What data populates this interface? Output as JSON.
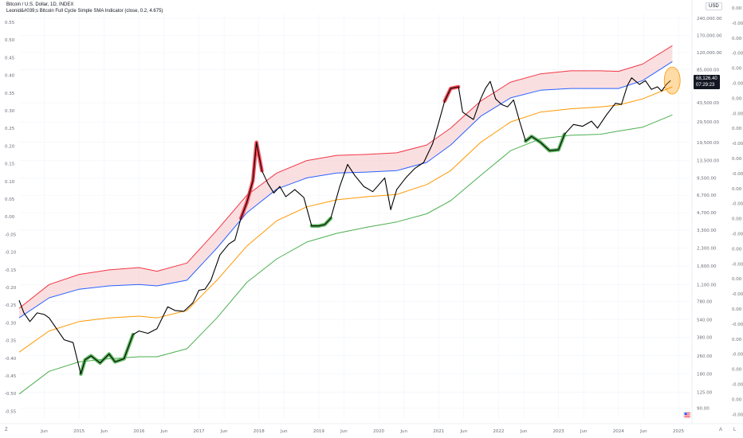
{
  "header": {
    "symbol_line": "Bitcoin / U.S. Dollar, 1D, INDEX",
    "indicator_line": "Leonid&#039;s Bitcoin Full Cycle Simple SMA Indicator (close, 0.2, 4.675)"
  },
  "currency_button": "USD",
  "price_label": {
    "value": "68,126.40",
    "time": "07:29:23"
  },
  "bottom_right": {
    "auto": "A",
    "log": "L"
  },
  "bottom_left": "Z",
  "colors": {
    "band_top": "#f23645",
    "band_mid": "#2962ff",
    "band_fair": "#ff9800",
    "band_low": "#4caf50",
    "price": "#000000",
    "highlight_overbought": "#f23645",
    "highlight_oversold": "#4caf50",
    "band_fill": "#f5c5c8",
    "ellipse": "#ff9800"
  },
  "chart_data": {
    "type": "line",
    "y_scale": "log",
    "title": "",
    "left_axis_ticks": [
      "0.55",
      "0.50",
      "0.45",
      "0.40",
      "0.35",
      "0.30",
      "0.25",
      "0.20",
      "0.15",
      "0.10",
      "0.05",
      "0.00",
      "-0.05",
      "-0.10",
      "-0.15",
      "-0.20",
      "-0.25",
      "-0.30",
      "-0.35",
      "-0.40",
      "-0.45",
      "-0.50",
      "-0.55"
    ],
    "price_axis_ticks": [
      {
        "label": "240,000.00",
        "value": 240000
      },
      {
        "label": "170,000.00",
        "value": 170000
      },
      {
        "label": "120,000.00",
        "value": 120000
      },
      {
        "label": "85,000.00",
        "value": 85000
      },
      {
        "label": "43,500.00",
        "value": 43500
      },
      {
        "label": "29,500.00",
        "value": 29500
      },
      {
        "label": "19,500.00",
        "value": 19500
      },
      {
        "label": "13,500.00",
        "value": 13500
      },
      {
        "label": "9,500.00",
        "value": 9500
      },
      {
        "label": "6,700.00",
        "value": 6700
      },
      {
        "label": "4,700.00",
        "value": 4700
      },
      {
        "label": "3,300.00",
        "value": 3300
      },
      {
        "label": "2,300.00",
        "value": 2300
      },
      {
        "label": "1,600.00",
        "value": 1600
      },
      {
        "label": "1,100.00",
        "value": 1100
      },
      {
        "label": "780.00",
        "value": 780
      },
      {
        "label": "540.00",
        "value": 540
      },
      {
        "label": "380.00",
        "value": 380
      },
      {
        "label": "260.00",
        "value": 260
      },
      {
        "label": "180.00",
        "value": 180
      },
      {
        "label": "125.00",
        "value": 125
      },
      {
        "label": "90.00",
        "value": 90
      }
    ],
    "oscillator_axis_ticks": [
      "0.00",
      "-0.00",
      "0.00",
      "-0.00",
      "0.00",
      "-0.00",
      "0.00",
      "-0.00",
      "0.00",
      "-0.00",
      "0.00",
      "-0.00",
      "0.00",
      "-0.00",
      "0.00",
      "-0.00",
      "0.00",
      "-0.00",
      "0.00",
      "-0.00",
      "0.00",
      "-0.00",
      "0.00",
      "-0.00",
      "0.00",
      "-0.00",
      "0.00",
      "-0.00"
    ],
    "x_ticks": [
      {
        "label": "Jun",
        "t": 2014.42
      },
      {
        "label": "2015",
        "t": 2015.0
      },
      {
        "label": "Jun",
        "t": 2015.42
      },
      {
        "label": "2016",
        "t": 2016.0
      },
      {
        "label": "Jun",
        "t": 2016.42
      },
      {
        "label": "2017",
        "t": 2017.0
      },
      {
        "label": "Jun",
        "t": 2017.42
      },
      {
        "label": "2018",
        "t": 2018.0
      },
      {
        "label": "Jun",
        "t": 2018.42
      },
      {
        "label": "2019",
        "t": 2019.0
      },
      {
        "label": "Jun",
        "t": 2019.42
      },
      {
        "label": "2020",
        "t": 2020.0
      },
      {
        "label": "Jun",
        "t": 2020.42
      },
      {
        "label": "2021",
        "t": 2021.0
      },
      {
        "label": "Jun",
        "t": 2021.42
      },
      {
        "label": "2022",
        "t": 2022.0
      },
      {
        "label": "Jun",
        "t": 2022.42
      },
      {
        "label": "2023",
        "t": 2023.0
      },
      {
        "label": "Jun",
        "t": 2023.42
      },
      {
        "label": "2024",
        "t": 2024.0
      },
      {
        "label": "Jun",
        "t": 2024.42
      },
      {
        "label": "2025",
        "t": 2025.0
      }
    ],
    "x_range": [
      2014.0,
      2025.2
    ],
    "y_range": [
      80,
      260000
    ],
    "series": [
      {
        "key": "top",
        "points": [
          [
            2014.0,
            680
          ],
          [
            2014.5,
            1100
          ],
          [
            2015.0,
            1350
          ],
          [
            2015.5,
            1480
          ],
          [
            2016.0,
            1550
          ],
          [
            2016.3,
            1440
          ],
          [
            2016.8,
            1700
          ],
          [
            2017.3,
            3300
          ],
          [
            2017.8,
            6700
          ],
          [
            2018.3,
            10500
          ],
          [
            2018.8,
            13500
          ],
          [
            2019.3,
            15000
          ],
          [
            2019.8,
            15300
          ],
          [
            2020.3,
            15800
          ],
          [
            2020.8,
            18500
          ],
          [
            2021.2,
            26000
          ],
          [
            2021.7,
            45000
          ],
          [
            2022.2,
            66000
          ],
          [
            2022.7,
            78000
          ],
          [
            2023.2,
            83000
          ],
          [
            2023.7,
            83000
          ],
          [
            2024.0,
            82000
          ],
          [
            2024.4,
            95000
          ],
          [
            2024.9,
            138000
          ]
        ]
      },
      {
        "key": "mid",
        "points": [
          [
            2014.0,
            560
          ],
          [
            2014.5,
            840
          ],
          [
            2015.0,
            1000
          ],
          [
            2015.5,
            1070
          ],
          [
            2016.0,
            1100
          ],
          [
            2016.3,
            1070
          ],
          [
            2016.8,
            1200
          ],
          [
            2017.3,
            2300
          ],
          [
            2017.8,
            4700
          ],
          [
            2018.3,
            7600
          ],
          [
            2018.8,
            9500
          ],
          [
            2019.3,
            10500
          ],
          [
            2019.8,
            10700
          ],
          [
            2020.3,
            11000
          ],
          [
            2020.8,
            13000
          ],
          [
            2021.2,
            18500
          ],
          [
            2021.7,
            33000
          ],
          [
            2022.2,
            48000
          ],
          [
            2022.7,
            56000
          ],
          [
            2023.2,
            58000
          ],
          [
            2023.7,
            58000
          ],
          [
            2024.0,
            58000
          ],
          [
            2024.4,
            68000
          ],
          [
            2024.9,
            100000
          ]
        ]
      },
      {
        "key": "fair",
        "points": [
          [
            2014.0,
            280
          ],
          [
            2014.5,
            430
          ],
          [
            2015.0,
            520
          ],
          [
            2015.5,
            560
          ],
          [
            2016.0,
            580
          ],
          [
            2016.3,
            560
          ],
          [
            2016.8,
            650
          ],
          [
            2017.3,
            1200
          ],
          [
            2017.8,
            2400
          ],
          [
            2018.3,
            4000
          ],
          [
            2018.8,
            5300
          ],
          [
            2019.3,
            6100
          ],
          [
            2019.8,
            6500
          ],
          [
            2020.3,
            6800
          ],
          [
            2020.8,
            8300
          ],
          [
            2021.2,
            11000
          ],
          [
            2021.7,
            19500
          ],
          [
            2022.2,
            29500
          ],
          [
            2022.7,
            36000
          ],
          [
            2023.2,
            38500
          ],
          [
            2023.7,
            40000
          ],
          [
            2024.0,
            41500
          ],
          [
            2024.4,
            47000
          ],
          [
            2024.9,
            60000
          ]
        ]
      },
      {
        "key": "low",
        "points": [
          [
            2014.0,
            120
          ],
          [
            2014.5,
            190
          ],
          [
            2015.0,
            230
          ],
          [
            2015.5,
            245
          ],
          [
            2016.0,
            255
          ],
          [
            2016.3,
            255
          ],
          [
            2016.8,
            300
          ],
          [
            2017.3,
            560
          ],
          [
            2017.8,
            1150
          ],
          [
            2018.3,
            1850
          ],
          [
            2018.8,
            2600
          ],
          [
            2019.3,
            3100
          ],
          [
            2019.8,
            3500
          ],
          [
            2020.3,
            3900
          ],
          [
            2020.8,
            4600
          ],
          [
            2021.2,
            6000
          ],
          [
            2021.7,
            10000
          ],
          [
            2022.2,
            16500
          ],
          [
            2022.7,
            21000
          ],
          [
            2023.2,
            22500
          ],
          [
            2023.7,
            23000
          ],
          [
            2024.0,
            24500
          ],
          [
            2024.4,
            26500
          ],
          [
            2024.9,
            34000
          ]
        ]
      },
      {
        "key": "price",
        "points": [
          [
            2014.0,
            800
          ],
          [
            2014.08,
            620
          ],
          [
            2014.18,
            520
          ],
          [
            2014.3,
            620
          ],
          [
            2014.42,
            600
          ],
          [
            2014.5,
            560
          ],
          [
            2014.6,
            470
          ],
          [
            2014.75,
            360
          ],
          [
            2014.9,
            340
          ],
          [
            2015.03,
            180
          ],
          [
            2015.1,
            240
          ],
          [
            2015.2,
            260
          ],
          [
            2015.35,
            225
          ],
          [
            2015.5,
            270
          ],
          [
            2015.6,
            230
          ],
          [
            2015.75,
            245
          ],
          [
            2015.9,
            400
          ],
          [
            2016.0,
            430
          ],
          [
            2016.15,
            410
          ],
          [
            2016.3,
            450
          ],
          [
            2016.48,
            700
          ],
          [
            2016.6,
            650
          ],
          [
            2016.75,
            640
          ],
          [
            2016.9,
            760
          ],
          [
            2017.0,
            980
          ],
          [
            2017.1,
            1000
          ],
          [
            2017.2,
            1200
          ],
          [
            2017.35,
            2000
          ],
          [
            2017.5,
            2500
          ],
          [
            2017.6,
            2700
          ],
          [
            2017.7,
            4200
          ],
          [
            2017.8,
            5800
          ],
          [
            2017.9,
            9000
          ],
          [
            2017.96,
            19500
          ],
          [
            2018.05,
            11000
          ],
          [
            2018.15,
            8500
          ],
          [
            2018.25,
            7000
          ],
          [
            2018.35,
            8000
          ],
          [
            2018.45,
            6500
          ],
          [
            2018.6,
            7500
          ],
          [
            2018.75,
            6400
          ],
          [
            2018.88,
            3600
          ],
          [
            2019.0,
            3600
          ],
          [
            2019.1,
            3700
          ],
          [
            2019.2,
            4200
          ],
          [
            2019.35,
            8000
          ],
          [
            2019.48,
            12500
          ],
          [
            2019.6,
            10000
          ],
          [
            2019.75,
            8000
          ],
          [
            2019.9,
            7200
          ],
          [
            2020.1,
            9500
          ],
          [
            2020.2,
            5000
          ],
          [
            2020.3,
            7500
          ],
          [
            2020.45,
            9500
          ],
          [
            2020.6,
            11500
          ],
          [
            2020.75,
            13000
          ],
          [
            2020.9,
            19000
          ],
          [
            2021.0,
            29000
          ],
          [
            2021.1,
            45000
          ],
          [
            2021.2,
            58000
          ],
          [
            2021.33,
            60000
          ],
          [
            2021.4,
            36000
          ],
          [
            2021.5,
            33000
          ],
          [
            2021.58,
            31000
          ],
          [
            2021.7,
            47000
          ],
          [
            2021.78,
            58000
          ],
          [
            2021.86,
            67000
          ],
          [
            2021.95,
            47000
          ],
          [
            2022.05,
            42000
          ],
          [
            2022.15,
            40000
          ],
          [
            2022.25,
            46000
          ],
          [
            2022.35,
            30000
          ],
          [
            2022.45,
            20000
          ],
          [
            2022.55,
            22000
          ],
          [
            2022.7,
            19500
          ],
          [
            2022.85,
            16500
          ],
          [
            2023.0,
            16800
          ],
          [
            2023.1,
            23000
          ],
          [
            2023.25,
            28000
          ],
          [
            2023.4,
            27000
          ],
          [
            2023.55,
            30000
          ],
          [
            2023.65,
            26000
          ],
          [
            2023.8,
            34000
          ],
          [
            2023.95,
            43000
          ],
          [
            2024.05,
            42000
          ],
          [
            2024.15,
            62000
          ],
          [
            2024.22,
            72000
          ],
          [
            2024.35,
            63000
          ],
          [
            2024.45,
            68000
          ],
          [
            2024.55,
            57000
          ],
          [
            2024.65,
            60000
          ],
          [
            2024.72,
            55000
          ],
          [
            2024.8,
            63000
          ],
          [
            2024.87,
            68126
          ]
        ]
      }
    ],
    "highlights": [
      {
        "kind": "overbought",
        "t0": 2017.7,
        "t1": 2018.05
      },
      {
        "kind": "overbought",
        "t0": 2021.05,
        "t1": 2021.33
      },
      {
        "kind": "oversold",
        "t0": 2015.03,
        "t1": 2015.9
      },
      {
        "kind": "oversold",
        "t0": 2018.88,
        "t1": 2019.2
      },
      {
        "kind": "oversold",
        "t0": 2022.45,
        "t1": 2023.1
      }
    ],
    "last_price": 68126.4,
    "legend": "none",
    "grid": true
  }
}
